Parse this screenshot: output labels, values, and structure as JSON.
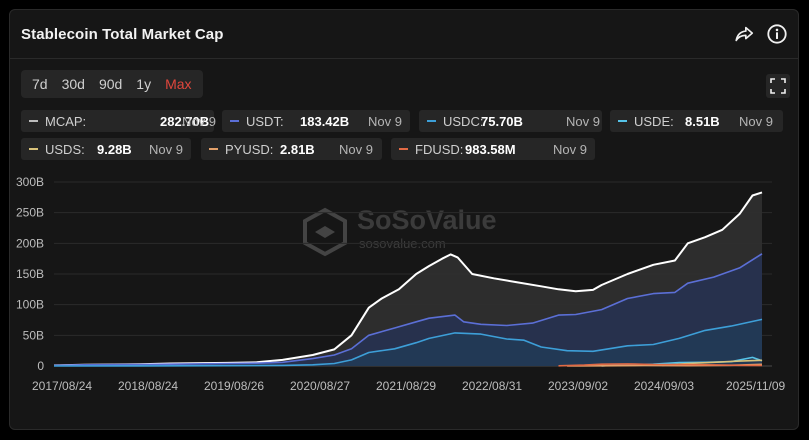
{
  "header": {
    "title": "Stablecoin Total Market Cap",
    "share_icon": "share-icon",
    "info_icon": "info-icon"
  },
  "ranges": [
    {
      "label": "7d",
      "active": false
    },
    {
      "label": "30d",
      "active": false
    },
    {
      "label": "90d",
      "active": false
    },
    {
      "label": "1y",
      "active": false
    },
    {
      "label": "Max",
      "active": true
    }
  ],
  "fullscreen_icon": "fullscreen-icon",
  "legend": [
    {
      "name": "MCAP:",
      "value": "282.70B",
      "date": "Nov 9",
      "color": "#bdbdbd"
    },
    {
      "name": "USDT:",
      "value": "183.42B",
      "date": "Nov 9",
      "color": "#5b6fd6"
    },
    {
      "name": "USDC:",
      "value": "75.70B",
      "date": "Nov 9",
      "color": "#3d9fd8"
    },
    {
      "name": "USDE:",
      "value": "8.51B",
      "date": "Nov 9",
      "color": "#56c3e8"
    },
    {
      "name": "USDS:",
      "value": "9.28B",
      "date": "Nov 9",
      "color": "#d8c27a"
    },
    {
      "name": "PYUSD:",
      "value": "2.81B",
      "date": "Nov 9",
      "color": "#e2a06a"
    },
    {
      "name": "FDUSD:",
      "value": "983.58M",
      "date": "Nov 9",
      "color": "#e06a45"
    }
  ],
  "watermark": {
    "brand": "SoSoValue",
    "url": "sosovalue.com"
  },
  "chart_data": {
    "type": "area",
    "title": "Stablecoin Total Market Cap",
    "ylim": [
      0,
      300
    ],
    "y_ticks": [
      "0",
      "50B",
      "100B",
      "150B",
      "200B",
      "250B",
      "300B"
    ],
    "x_ticks": [
      "2017/08/24",
      "2018/08/24",
      "2019/08/26",
      "2020/08/27",
      "2021/08/29",
      "2022/08/31",
      "2023/09/02",
      "2024/09/03",
      "2025/11/09"
    ],
    "grid": true,
    "series": [
      {
        "name": "MCAP",
        "color": "#ffffff",
        "fill": "#2e2e2e",
        "x": [
          2017.65,
          2018.0,
          2018.65,
          2019.0,
          2019.65,
          2020.0,
          2020.3,
          2020.65,
          2020.9,
          2021.1,
          2021.3,
          2021.45,
          2021.65,
          2021.85,
          2022.0,
          2022.15,
          2022.25,
          2022.33,
          2022.5,
          2022.75,
          2023.0,
          2023.3,
          2023.5,
          2023.7,
          2023.9,
          2024.0,
          2024.3,
          2024.6,
          2024.85,
          2025.0,
          2025.2,
          2025.4,
          2025.6,
          2025.75,
          2025.86
        ],
        "y": [
          1,
          2,
          3,
          4,
          5,
          6,
          10,
          18,
          27,
          50,
          95,
          110,
          125,
          150,
          163,
          175,
          182,
          177,
          150,
          143,
          137,
          130,
          125,
          122,
          124,
          132,
          150,
          165,
          172,
          200,
          210,
          222,
          248,
          278,
          283
        ]
      },
      {
        "name": "USDT",
        "color": "#5b6fd6",
        "fill": "#27314f",
        "x": [
          2017.65,
          2018.0,
          2018.65,
          2019.0,
          2019.65,
          2020.0,
          2020.3,
          2020.65,
          2020.9,
          2021.1,
          2021.3,
          2021.6,
          2021.85,
          2022.0,
          2022.3,
          2022.4,
          2022.6,
          2022.9,
          2023.2,
          2023.5,
          2023.7,
          2024.0,
          2024.3,
          2024.6,
          2024.85,
          2025.0,
          2025.3,
          2025.6,
          2025.86
        ],
        "y": [
          1,
          2,
          2.5,
          3,
          4,
          4.5,
          6,
          12,
          18,
          28,
          50,
          62,
          72,
          78,
          83,
          72,
          68,
          66,
          70,
          83,
          84,
          92,
          110,
          118,
          120,
          135,
          145,
          160,
          183
        ]
      },
      {
        "name": "USDC",
        "color": "#3d9fd8",
        "fill": "#223a55",
        "x": [
          2017.65,
          2018.65,
          2019.65,
          2020.3,
          2020.65,
          2020.9,
          2021.1,
          2021.3,
          2021.6,
          2021.85,
          2022.0,
          2022.3,
          2022.6,
          2022.9,
          2023.1,
          2023.3,
          2023.6,
          2023.9,
          2024.3,
          2024.6,
          2024.9,
          2025.2,
          2025.5,
          2025.86
        ],
        "y": [
          0,
          0.2,
          0.5,
          1,
          2,
          4,
          10,
          22,
          28,
          38,
          45,
          54,
          52,
          44,
          42,
          31,
          25,
          24,
          33,
          35,
          45,
          58,
          65,
          76
        ]
      },
      {
        "name": "USDE",
        "color": "#56c3e8",
        "x": [
          2024.0,
          2024.3,
          2024.6,
          2024.9,
          2025.2,
          2025.5,
          2025.75,
          2025.86
        ],
        "y": [
          0.2,
          2.5,
          3,
          5.5,
          6,
          7,
          14,
          8.5
        ]
      },
      {
        "name": "USDS",
        "color": "#d8c27a",
        "x": [
          2024.7,
          2025.0,
          2025.3,
          2025.6,
          2025.86
        ],
        "y": [
          1,
          4,
          6,
          8,
          9.3
        ]
      },
      {
        "name": "PYUSD",
        "color": "#e2a06a",
        "x": [
          2023.6,
          2024.0,
          2024.5,
          2025.0,
          2025.5,
          2025.86
        ],
        "y": [
          0.1,
          0.3,
          0.8,
          0.5,
          1.2,
          2.8
        ]
      },
      {
        "name": "FDUSD",
        "color": "#e06a45",
        "x": [
          2023.5,
          2023.8,
          2024.0,
          2024.3,
          2024.6,
          2025.0,
          2025.3,
          2025.6,
          2025.86
        ],
        "y": [
          0.3,
          1.5,
          3,
          3.5,
          2.5,
          2.3,
          1.8,
          1.2,
          1
        ]
      }
    ]
  }
}
